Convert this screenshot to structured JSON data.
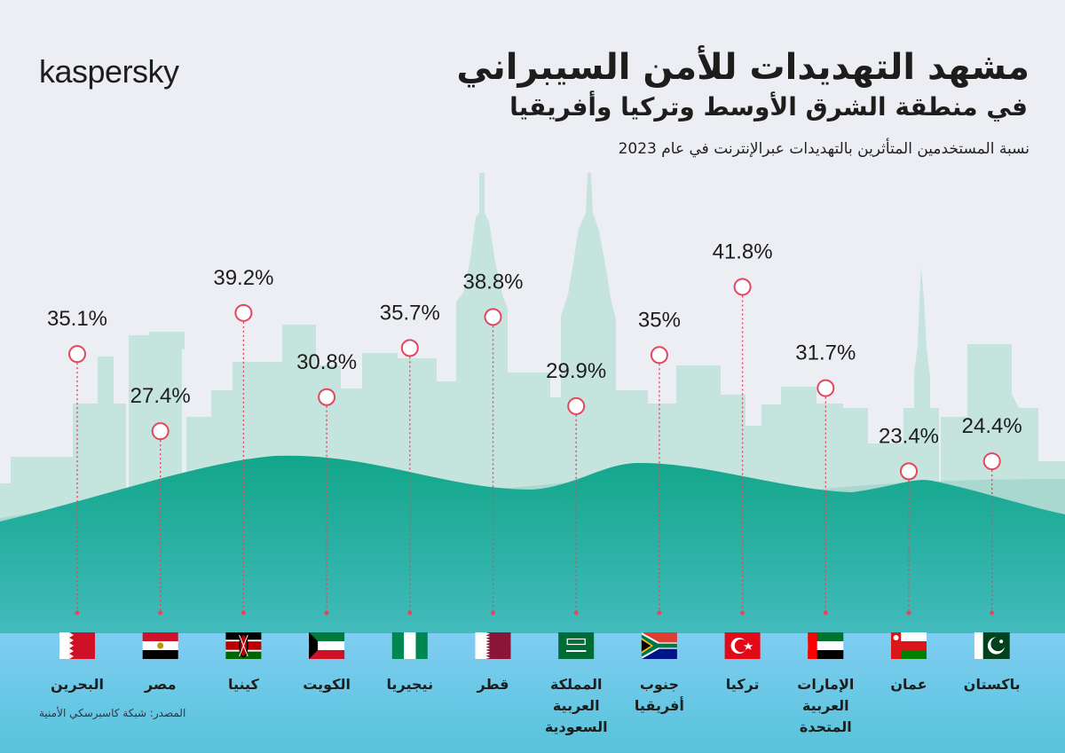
{
  "brand": {
    "logo": "kaspersky"
  },
  "header": {
    "title": "مشهد التهديدات للأمن السيبراني",
    "subtitle": "في منطقة الشرق الأوسط وتركيا وأفريقيا",
    "caption": "نسبة المستخدمين المتأثرين بالتهديدات عبرالإنترنت في عام 2023"
  },
  "footer": {
    "source": "المصدر: شبكة كاسبرسكي الأمنية"
  },
  "colors": {
    "accent": "#e2475e",
    "sky": "#eceef3",
    "buildings": "#c3e2dc",
    "hills": "#1aa88f",
    "water": "#62c6e4"
  },
  "chart_data": {
    "type": "scatter",
    "title": "مشهد التهديدات للأمن السيبراني",
    "subtitle": "في منطقة الشرق الأوسط وتركيا وأفريقيا",
    "ylabel": "",
    "xlabel": "",
    "categories": [
      "البحرين",
      "مصر",
      "كينيا",
      "الكويت",
      "نيجيريا",
      "قطر",
      "المملكة العربية السعودية",
      "جنوب أفريقيا",
      "تركيا",
      "الإمارات العربية المتحدة",
      "عمان",
      "باكستان"
    ],
    "category_lines": [
      [
        "البحرين"
      ],
      [
        "مصر"
      ],
      [
        "كينيا"
      ],
      [
        "الكويت"
      ],
      [
        "نيجيريا"
      ],
      [
        "قطر"
      ],
      [
        "المملكة",
        "العربية",
        "السعودية"
      ],
      [
        "جنوب",
        "أفريقيا"
      ],
      [
        "تركيا"
      ],
      [
        "الإمارات",
        "العربية",
        "المتحدة"
      ],
      [
        "عمان"
      ],
      [
        "باكستان"
      ]
    ],
    "labels": [
      "35.1%",
      "27.4%",
      "39.2%",
      "30.8%",
      "35.7%",
      "38.8%",
      "29.9%",
      "35%",
      "41.8%",
      "31.7%",
      "23.4%",
      "24.4%"
    ],
    "values": [
      35.1,
      27.4,
      39.2,
      30.8,
      35.7,
      38.8,
      29.9,
      35.0,
      41.8,
      31.7,
      23.4,
      24.4
    ],
    "flags": [
      "bahrain-flag",
      "egypt-flag",
      "kenya-flag",
      "kuwait-flag",
      "nigeria-flag",
      "qatar-flag",
      "saudi-arabia-flag",
      "south-africa-flag",
      "turkey-flag",
      "uae-flag",
      "oman-flag",
      "pakistan-flag"
    ],
    "marker_color": "#e2475e",
    "grid": false,
    "legend": "none"
  }
}
